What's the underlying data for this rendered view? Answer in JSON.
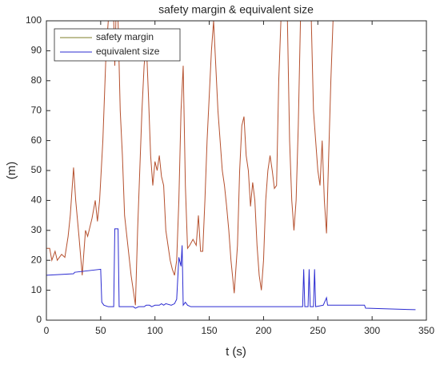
{
  "chart_data": {
    "type": "line",
    "title": "safety margin & equivalent size",
    "xlabel": "t (s)",
    "ylabel": "(m)",
    "xlim": [
      0,
      350
    ],
    "xticks": [
      0,
      50,
      100,
      150,
      200,
      250,
      300,
      350
    ],
    "ylim": [
      0,
      100
    ],
    "yticks": [
      0,
      10,
      20,
      30,
      40,
      50,
      60,
      70,
      80,
      90,
      100
    ],
    "legend": "upper-left",
    "grid": false,
    "series": [
      {
        "name": "safety margin",
        "color": "#b5502e",
        "legend_color": "#7f7f2a",
        "x": [
          0,
          3,
          5,
          8,
          10,
          14,
          17,
          20,
          22,
          25,
          27,
          30,
          33,
          36,
          38,
          40,
          42,
          45,
          47,
          49,
          52,
          55,
          57,
          62,
          63,
          64,
          66,
          68,
          70,
          72,
          75,
          78,
          80,
          82,
          84,
          86,
          88,
          90,
          92,
          94,
          96,
          98,
          100,
          102,
          104,
          106,
          108,
          110,
          112,
          114,
          116,
          118,
          120,
          122,
          124,
          126,
          128,
          130,
          132,
          135,
          138,
          140,
          142,
          144,
          146,
          148,
          150,
          152,
          154,
          156,
          158,
          160,
          162,
          164,
          166,
          168,
          170,
          173,
          176,
          178,
          180,
          182,
          184,
          186,
          188,
          190,
          192,
          194,
          196,
          198,
          200,
          202,
          204,
          206,
          208,
          210,
          212,
          214,
          216,
          222,
          224,
          226,
          228,
          230,
          232,
          234,
          244,
          246,
          248,
          250,
          252,
          254,
          256,
          258,
          260,
          262,
          264,
          340
        ],
        "values": [
          24,
          24,
          20,
          23,
          20,
          22,
          21,
          28,
          35,
          51,
          40,
          28,
          15,
          30,
          28,
          31,
          34,
          40,
          33,
          40,
          60,
          90,
          100,
          100,
          85,
          100,
          100,
          70,
          55,
          35,
          25,
          15,
          10,
          5,
          30,
          50,
          70,
          85,
          93,
          75,
          55,
          45,
          53,
          50,
          55,
          48,
          45,
          30,
          25,
          20,
          17,
          15,
          20,
          40,
          70,
          85,
          45,
          24,
          25,
          27,
          25,
          35,
          23,
          23,
          40,
          60,
          75,
          90,
          100,
          85,
          70,
          60,
          50,
          45,
          38,
          30,
          20,
          9,
          25,
          50,
          65,
          68,
          55,
          50,
          38,
          46,
          40,
          25,
          15,
          10,
          20,
          40,
          50,
          55,
          50,
          44,
          45,
          80,
          100,
          100,
          60,
          40,
          30,
          40,
          65,
          100,
          100,
          70,
          60,
          50,
          45,
          60,
          40,
          29,
          55,
          80,
          100,
          100
        ]
      },
      {
        "name": "equivalent size",
        "color": "#2b2bd1",
        "legend_color": "#2b2bd1",
        "x": [
          0,
          25,
          26,
          50,
          51,
          53,
          57,
          62,
          63,
          66,
          67,
          80,
          82,
          85,
          90,
          92,
          95,
          97,
          100,
          104,
          106,
          108,
          110,
          115,
          118,
          120,
          122,
          124,
          125,
          126,
          128,
          130,
          133,
          200,
          236,
          237,
          238,
          241,
          242,
          243,
          246,
          247,
          248,
          255,
          258,
          259,
          293,
          294,
          340
        ],
        "values": [
          15,
          15.5,
          16,
          17,
          6,
          5,
          4.5,
          4.5,
          30.5,
          30.5,
          4.5,
          4.5,
          4,
          4.5,
          4.5,
          5,
          5,
          4.5,
          5,
          5,
          5.5,
          5,
          5.5,
          5,
          5.5,
          7,
          21,
          18,
          25,
          5,
          6,
          5,
          4.5,
          4.5,
          4.5,
          17,
          4.5,
          4.5,
          17,
          4.5,
          4.5,
          17,
          4.5,
          5,
          7.5,
          5,
          5,
          4,
          3.5
        ]
      }
    ]
  }
}
